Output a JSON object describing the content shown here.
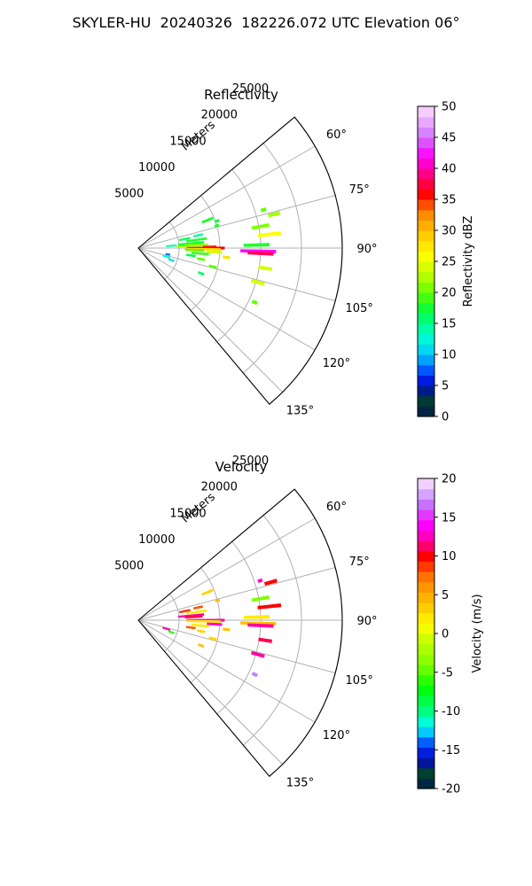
{
  "figure": {
    "title": "SKYLER-HU  20240326  182226.072 UTC Elevation 06°"
  },
  "chart_data": [
    {
      "type": "polar-sector",
      "title": "Reflectivity",
      "range_label": "Meters",
      "range_ticks": [
        5000,
        10000,
        15000,
        20000,
        25000
      ],
      "range_max": 25000,
      "azimuth_range": [
        50,
        140
      ],
      "azimuth_ticks": [
        "60°",
        "75°",
        "90°",
        "105°",
        "120°",
        "135°"
      ],
      "grid": true,
      "colorbar": {
        "label": "Reflectivity dBZ",
        "range": [
          0,
          50
        ],
        "ticks": [
          0,
          5,
          10,
          15,
          20,
          25,
          30,
          35,
          40,
          45,
          50
        ]
      },
      "gates": [
        {
          "az": 68,
          "r": [
            8500,
            9800
          ],
          "value": 18
        },
        {
          "az": 71,
          "r": [
            10000,
            10400
          ],
          "value": 17
        },
        {
          "az": 74,
          "r": [
            9800,
            10200
          ],
          "value": 18
        },
        {
          "az": 73,
          "r": [
            15800,
            16300
          ],
          "value": 20
        },
        {
          "az": 76,
          "r": [
            16500,
            17800
          ],
          "value": 22
        },
        {
          "az": 78,
          "r": [
            7000,
            8000
          ],
          "value": 14
        },
        {
          "az": 79,
          "r": [
            5200,
            6400
          ],
          "value": 16
        },
        {
          "az": 80,
          "r": [
            14200,
            16200
          ],
          "value": 21
        },
        {
          "az": 82,
          "r": [
            6000,
            8400
          ],
          "value": 18
        },
        {
          "az": 84,
          "r": [
            14800,
            17500
          ],
          "value": 26
        },
        {
          "az": 85,
          "r": [
            5000,
            8000
          ],
          "value": 17
        },
        {
          "az": 86,
          "r": [
            3500,
            4600
          ],
          "value": 14
        },
        {
          "az": 86.5,
          "r": [
            5800,
            7800
          ],
          "value": 20
        },
        {
          "az": 87.5,
          "r": [
            4800,
            8500
          ],
          "value": 22
        },
        {
          "az": 88.5,
          "r": [
            13000,
            16000
          ],
          "value": 18
        },
        {
          "az": 89,
          "r": [
            8000,
            9500
          ],
          "value": 35
        },
        {
          "az": 90,
          "r": [
            6000,
            10500
          ],
          "value": 36
        },
        {
          "az": 91,
          "r": [
            6000,
            10000
          ],
          "value": 28
        },
        {
          "az": 91.5,
          "r": [
            12600,
            16800
          ],
          "value": 42
        },
        {
          "az": 92,
          "r": [
            5800,
            8000
          ],
          "value": 20
        },
        {
          "az": 92.5,
          "r": [
            13500,
            16500
          ],
          "value": 38
        },
        {
          "az": 93,
          "r": [
            8500,
            10200
          ],
          "value": 24
        },
        {
          "az": 95,
          "r": [
            6600,
            8600
          ],
          "value": 19
        },
        {
          "az": 96,
          "r": [
            10500,
            11200
          ],
          "value": 28
        },
        {
          "az": 98,
          "r": [
            6000,
            7000
          ],
          "value": 17
        },
        {
          "az": 99,
          "r": [
            15000,
            16500
          ],
          "value": 24
        },
        {
          "az": 100,
          "r": [
            7400,
            8200
          ],
          "value": 20
        },
        {
          "az": 102,
          "r": [
            3500,
            3900
          ],
          "value": 8
        },
        {
          "az": 104,
          "r": [
            9000,
            9800
          ],
          "value": 20
        },
        {
          "az": 106,
          "r": [
            14500,
            16000
          ],
          "value": 24
        },
        {
          "az": 107,
          "r": [
            3200,
            4000
          ],
          "value": 13
        },
        {
          "az": 110,
          "r": [
            4000,
            4600
          ],
          "value": 11
        },
        {
          "az": 112,
          "r": [
            8000,
            8600
          ],
          "value": 16
        },
        {
          "az": 115,
          "r": [
            15500,
            16000
          ],
          "value": 20
        }
      ]
    },
    {
      "type": "polar-sector",
      "title": "Velocity",
      "range_label": "Meters",
      "range_ticks": [
        5000,
        10000,
        15000,
        20000,
        25000
      ],
      "range_max": 25000,
      "azimuth_range": [
        50,
        140
      ],
      "azimuth_ticks": [
        "60°",
        "75°",
        "90°",
        "105°",
        "120°",
        "135°"
      ],
      "grid": true,
      "colorbar": {
        "label": "Velocity (m/s)",
        "range": [
          -20,
          20
        ],
        "ticks": [
          -20,
          -15,
          -10,
          -5,
          0,
          5,
          10,
          15,
          20
        ]
      },
      "gates": [
        {
          "az": 68,
          "r": [
            8500,
            9800
          ],
          "value": 3
        },
        {
          "az": 72,
          "r": [
            15500,
            15900
          ],
          "value": 13
        },
        {
          "az": 74,
          "r": [
            16200,
            17600
          ],
          "value": 10
        },
        {
          "az": 76,
          "r": [
            9800,
            10200
          ],
          "value": 4
        },
        {
          "az": 78,
          "r": [
            7000,
            8000
          ],
          "value": 8
        },
        {
          "az": 79,
          "r": [
            5200,
            6400
          ],
          "value": 9
        },
        {
          "az": 80,
          "r": [
            14200,
            16200
          ],
          "value": -4
        },
        {
          "az": 82,
          "r": [
            6000,
            8400
          ],
          "value": 2
        },
        {
          "az": 84,
          "r": [
            14800,
            17500
          ],
          "value": 10
        },
        {
          "az": 85,
          "r": [
            5000,
            8000
          ],
          "value": 12
        },
        {
          "az": 86.5,
          "r": [
            5800,
            7800
          ],
          "value": 11
        },
        {
          "az": 88.5,
          "r": [
            13000,
            16000
          ],
          "value": 2
        },
        {
          "az": 90,
          "r": [
            6000,
            10500
          ],
          "value": 13
        },
        {
          "az": 91,
          "r": [
            6000,
            10000
          ],
          "value": 2
        },
        {
          "az": 91.5,
          "r": [
            12600,
            16800
          ],
          "value": 4
        },
        {
          "az": 92.5,
          "r": [
            13500,
            16500
          ],
          "value": 12
        },
        {
          "az": 93,
          "r": [
            8500,
            10200
          ],
          "value": 13
        },
        {
          "az": 95,
          "r": [
            6600,
            8600
          ],
          "value": 2
        },
        {
          "az": 96,
          "r": [
            10500,
            11200
          ],
          "value": 4
        },
        {
          "az": 98,
          "r": [
            6000,
            7000
          ],
          "value": 8
        },
        {
          "az": 99,
          "r": [
            15000,
            16500
          ],
          "value": 11
        },
        {
          "az": 100,
          "r": [
            7400,
            8200
          ],
          "value": 3
        },
        {
          "az": 104,
          "r": [
            9000,
            9800
          ],
          "value": 3
        },
        {
          "az": 106,
          "r": [
            14500,
            16000
          ],
          "value": 12
        },
        {
          "az": 107,
          "r": [
            3200,
            4000
          ],
          "value": 12
        },
        {
          "az": 110,
          "r": [
            4000,
            4600
          ],
          "value": -6
        },
        {
          "az": 112,
          "r": [
            8000,
            8600
          ],
          "value": 4
        },
        {
          "az": 115,
          "r": [
            15500,
            16000
          ],
          "value": 17
        }
      ]
    }
  ]
}
